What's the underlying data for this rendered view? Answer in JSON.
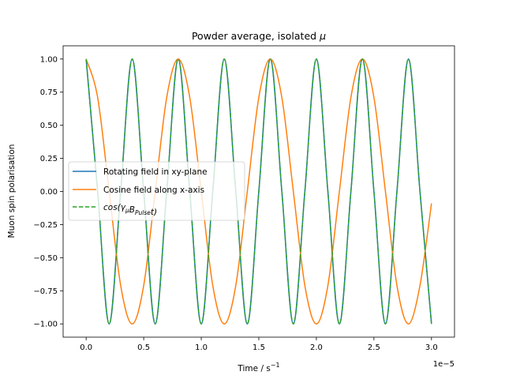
{
  "chart_data": {
    "type": "line",
    "title": "Powder average, isolated μ",
    "xlabel": "Time / s",
    "xlabel_exponent": "−1",
    "ylabel": "Muon spin polarisation",
    "x_offset_label": "1e−5",
    "xlim": [
      -2e-06,
      3.2e-05
    ],
    "ylim": [
      -1.1,
      1.1
    ],
    "x_ticks": [
      0,
      5e-06,
      1e-05,
      1.5e-05,
      2e-05,
      2.5e-05,
      3e-05
    ],
    "x_tick_labels": [
      "0.0",
      "0.5",
      "1.0",
      "1.5",
      "2.0",
      "2.5",
      "3.0"
    ],
    "y_ticks": [
      -1.0,
      -0.75,
      -0.5,
      -0.25,
      0.0,
      0.25,
      0.5,
      0.75,
      1.0
    ],
    "y_tick_labels": [
      "−1.00",
      "−0.75",
      "−0.50",
      "−0.25",
      "0.00",
      "0.25",
      "0.50",
      "0.75",
      "1.00"
    ],
    "grid": false,
    "legend_position": "center-left",
    "series": [
      {
        "name": "Rotating field in xy-plane",
        "color": "#1f77b4",
        "style": "solid",
        "x": [
          0,
          1e-06,
          2e-06,
          3e-06,
          4e-06,
          5e-06,
          6e-06,
          7e-06,
          8e-06,
          9e-06,
          1e-05,
          1.1e-05,
          1.2e-05,
          1.3e-05,
          1.4e-05,
          1.5e-05,
          1.6e-05,
          1.7e-05,
          1.8e-05,
          1.9e-05,
          2e-05,
          2.1e-05,
          2.2e-05,
          2.3e-05,
          2.4e-05,
          2.5e-05,
          2.6e-05,
          2.7e-05,
          2.8e-05,
          2.9e-05,
          3e-05
        ],
        "y": [
          1.0,
          0.0,
          -1.0,
          0.0,
          1.0,
          0.0,
          -1.0,
          0.0,
          1.0,
          0.0,
          -1.0,
          0.0,
          1.0,
          0.0,
          -1.0,
          0.0,
          1.0,
          0.0,
          -1.0,
          0.0,
          1.0,
          0.0,
          -1.0,
          0.0,
          1.0,
          0.0,
          -1.0,
          0.0,
          1.0,
          0.0,
          -1.0
        ]
      },
      {
        "name": "Cosine field along x-axis",
        "color": "#ff7f0e",
        "style": "solid",
        "x": [
          0,
          1e-06,
          2e-06,
          3e-06,
          4e-06,
          5e-06,
          6e-06,
          7e-06,
          8e-06,
          9e-06,
          1e-05,
          1.1e-05,
          1.2e-05,
          1.3e-05,
          1.4e-05,
          1.5e-05,
          1.6e-05,
          1.7e-05,
          1.8e-05,
          1.9e-05,
          2e-05,
          2.1e-05,
          2.2e-05,
          2.3e-05,
          2.4e-05,
          2.5e-05,
          2.6e-05,
          2.7e-05,
          2.8e-05,
          2.9e-05,
          3e-05
        ],
        "y": [
          1.0,
          0.71,
          0.0,
          -0.71,
          -1.0,
          -0.71,
          0.0,
          0.71,
          1.0,
          0.71,
          0.0,
          -0.71,
          -1.0,
          -0.71,
          0.0,
          0.71,
          1.0,
          0.71,
          0.0,
          -0.71,
          -1.0,
          -0.71,
          0.0,
          0.71,
          1.0,
          0.71,
          0.0,
          -0.71,
          -1.0,
          -0.71,
          -0.09
        ]
      },
      {
        "name": "cos(γμBPulset)",
        "color": "#2ca02c",
        "style": "dashed",
        "x": [
          0,
          1e-06,
          2e-06,
          3e-06,
          4e-06,
          5e-06,
          6e-06,
          7e-06,
          8e-06,
          9e-06,
          1e-05,
          1.1e-05,
          1.2e-05,
          1.3e-05,
          1.4e-05,
          1.5e-05,
          1.6e-05,
          1.7e-05,
          1.8e-05,
          1.9e-05,
          2e-05,
          2.1e-05,
          2.2e-05,
          2.3e-05,
          2.4e-05,
          2.5e-05,
          2.6e-05,
          2.7e-05,
          2.8e-05,
          2.9e-05,
          3e-05
        ],
        "y": [
          1.0,
          0.0,
          -1.0,
          0.0,
          1.0,
          0.0,
          -1.0,
          0.0,
          1.0,
          0.0,
          -1.0,
          0.0,
          1.0,
          0.0,
          -1.0,
          0.0,
          1.0,
          0.0,
          -1.0,
          0.0,
          1.0,
          0.0,
          -1.0,
          0.0,
          1.0,
          0.0,
          -1.0,
          0.0,
          1.0,
          0.0,
          -1.0
        ]
      }
    ]
  }
}
